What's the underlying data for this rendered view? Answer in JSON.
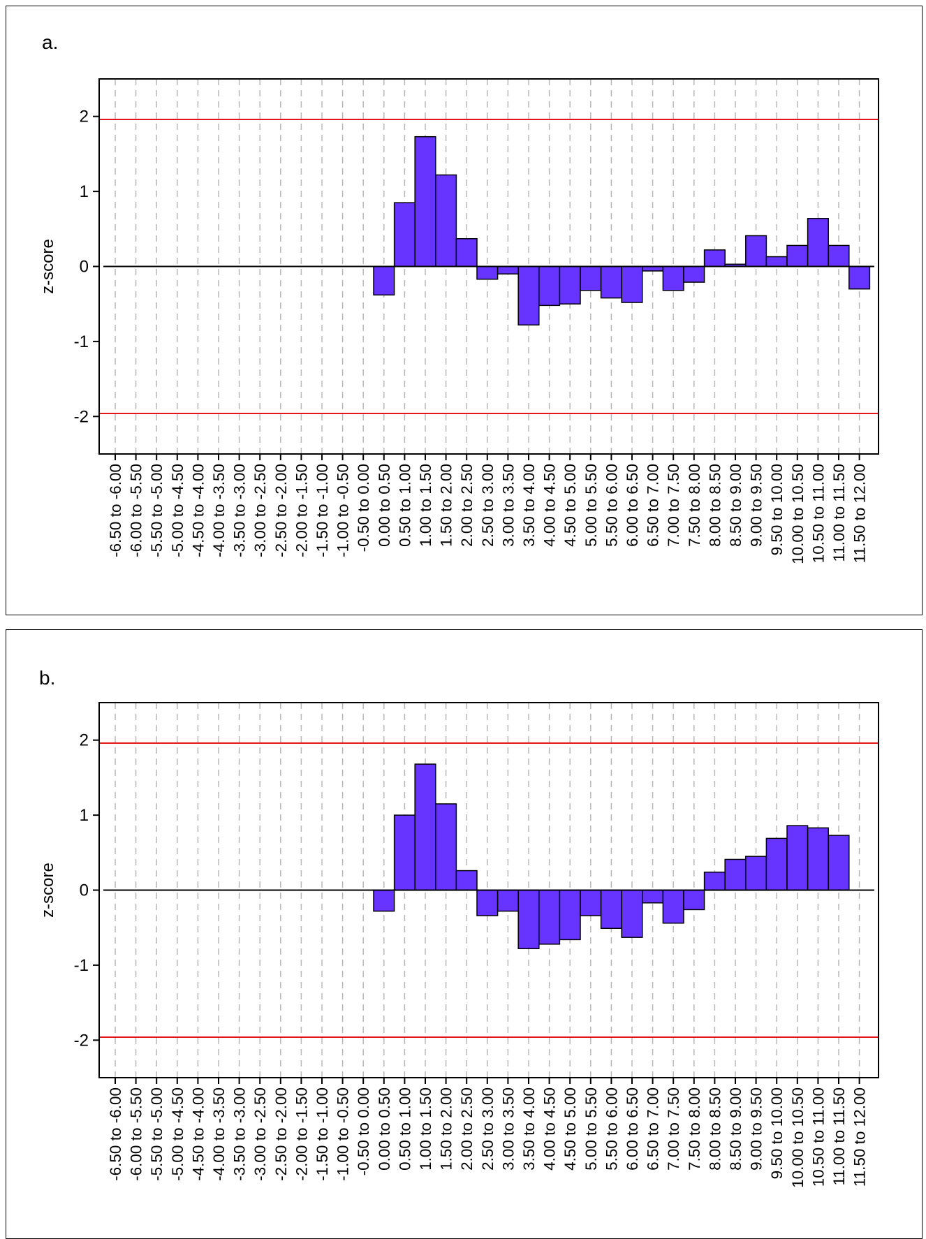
{
  "chart_data": [
    {
      "type": "bar",
      "panel_label": "a.",
      "ylabel": "z-score",
      "ylim": [
        -2.5,
        2.5
      ],
      "yticks": [
        2,
        1,
        0,
        -1,
        -2
      ],
      "ytick_labels": [
        "2",
        "1",
        "0",
        "-1",
        "-2"
      ],
      "reference_lines": [
        1.96,
        -1.96
      ],
      "reference_line_color": "#e8141c",
      "bar_color": "#6633ff",
      "grid": "vertical dashed",
      "categories": [
        "-6.50 to -6.00",
        "-6.00 to -5.50",
        "-5.50 to -5.00",
        "-5.00 to -4.50",
        "-4.50 to -4.00",
        "-4.00 to -3.50",
        "-3.50 to -3.00",
        "-3.00 to -2.50",
        "-2.50 to -2.00",
        "-2.00 to -1.50",
        "-1.50 to -1.00",
        "-1.00 to -0.50",
        "-0.50 to 0.00",
        "0.00 to 0.50",
        "0.50 to 1.00",
        "1.00 to 1.50",
        "1.50 to 2.00",
        "2.00 to 2.50",
        "2.50 to 3.00",
        "3.00 to 3.50",
        "3.50 to 4.00",
        "4.00 to 4.50",
        "4.50 to 5.00",
        "5.00 to 5.50",
        "5.50 to 6.00",
        "6.00 to 6.50",
        "6.50 to 7.00",
        "7.00 to 7.50",
        "7.50 to 8.00",
        "8.00 to 8.50",
        "8.50 to 9.00",
        "9.00 to 9.50",
        "9.50 to 10.00",
        "10.00 to 10.50",
        "10.50 to 11.00",
        "11.00 to 11.50",
        "11.50 to 12.00"
      ],
      "values": [
        0,
        0,
        0,
        0,
        0,
        0,
        0,
        0,
        0,
        0,
        0,
        0,
        0,
        -0.38,
        0.85,
        1.73,
        1.22,
        0.37,
        -0.17,
        -0.1,
        -0.78,
        -0.52,
        -0.5,
        -0.32,
        -0.42,
        -0.48,
        -0.06,
        -0.32,
        -0.21,
        0.22,
        0.03,
        0.41,
        0.13,
        0.28,
        0.64,
        0.28,
        -0.3
      ]
    },
    {
      "type": "bar",
      "panel_label": "b.",
      "ylabel": "z-score",
      "ylim": [
        -2.5,
        2.5
      ],
      "yticks": [
        2,
        1,
        0,
        -1,
        -2
      ],
      "ytick_labels": [
        "2",
        "1",
        "0",
        "-1",
        "-2"
      ],
      "reference_lines": [
        1.96,
        -1.96
      ],
      "reference_line_color": "#e8141c",
      "bar_color": "#6633ff",
      "grid": "vertical dashed",
      "categories": [
        "-6.50 to -6.00",
        "-6.00 to -5.50",
        "-5.50 to -5.00",
        "-5.00 to -4.50",
        "-4.50 to -4.00",
        "-4.00 to -3.50",
        "-3.50 to -3.00",
        "-3.00 to -2.50",
        "-2.50 to -2.00",
        "-2.00 to -1.50",
        "-1.50 to -1.00",
        "-1.00 to -0.50",
        "-0.50 to 0.00",
        "0.00 to 0.50",
        "0.50 to 1.00",
        "1.00 to 1.50",
        "1.50 to 2.00",
        "2.00 to 2.50",
        "2.50 to 3.00",
        "3.00 to 3.50",
        "3.50 to 4.00",
        "4.00 to 4.50",
        "4.50 to 5.00",
        "5.00 to 5.50",
        "5.50 to 6.00",
        "6.00 to 6.50",
        "6.50 to 7.00",
        "7.00 to 7.50",
        "7.50 to 8.00",
        "8.00 to 8.50",
        "8.50 to 9.00",
        "9.00 to 9.50",
        "9.50 to 10.00",
        "10.00 to 10.50",
        "10.50 to 11.00",
        "11.00 to 11.50",
        "11.50 to 12.00"
      ],
      "values": [
        0,
        0,
        0,
        0,
        0,
        0,
        0,
        0,
        0,
        0,
        0,
        0,
        0,
        -0.28,
        1.0,
        1.68,
        1.15,
        0.26,
        -0.34,
        -0.28,
        -0.78,
        -0.72,
        -0.66,
        -0.34,
        -0.51,
        -0.63,
        -0.17,
        -0.44,
        -0.26,
        0.24,
        0.41,
        0.45,
        0.69,
        0.86,
        0.83,
        0.73,
        0
      ]
    }
  ]
}
